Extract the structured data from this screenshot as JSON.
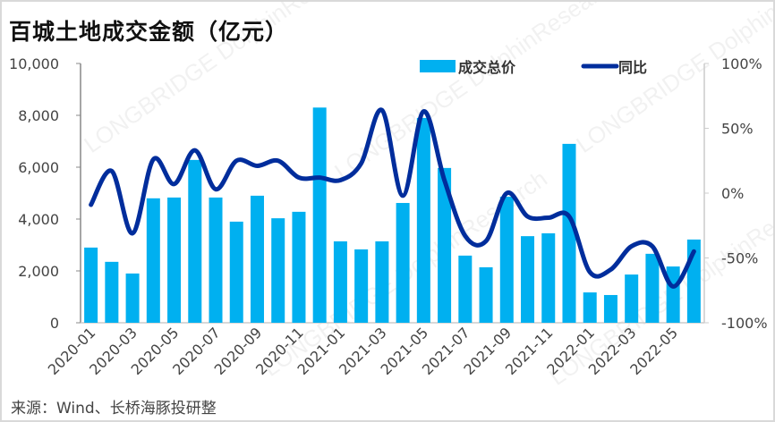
{
  "title": "百城土地成交金额（亿元）",
  "source": "来源：Wind、长桥海豚投研整",
  "watermark": "LONGBRIDGE DolphinResearch",
  "colors": {
    "bar": "#00B0F0",
    "line": "#002D9C",
    "axis": "#888888"
  },
  "chart_data": {
    "type": "bar+line",
    "title": "百城土地成交金额（亿元）",
    "categories": [
      "2020-01",
      "2020-02",
      "2020-03",
      "2020-04",
      "2020-05",
      "2020-06",
      "2020-07",
      "2020-08",
      "2020-09",
      "2020-10",
      "2020-11",
      "2020-12",
      "2021-01",
      "2021-02",
      "2021-03",
      "2021-04",
      "2021-05",
      "2021-06",
      "2021-07",
      "2021-08",
      "2021-09",
      "2021-10",
      "2021-11",
      "2021-12",
      "2022-01",
      "2022-02",
      "2022-03",
      "2022-04",
      "2022-05",
      "2022-06"
    ],
    "x_tick_labels": [
      "2020-01",
      "2020-03",
      "2020-05",
      "2020-07",
      "2020-09",
      "2020-11",
      "2021-01",
      "2021-03",
      "2021-05",
      "2021-07",
      "2021-09",
      "2021-11",
      "2022-01",
      "2022-03",
      "2022-05"
    ],
    "series": [
      {
        "name": "成交总价",
        "type": "bar",
        "axis": "left",
        "values": [
          2900,
          2350,
          1900,
          4800,
          4830,
          6280,
          4830,
          3900,
          4900,
          4030,
          4280,
          8300,
          3140,
          2830,
          3140,
          4620,
          7900,
          5970,
          2590,
          2140,
          4860,
          3340,
          3450,
          6900,
          1170,
          1070,
          1860,
          2660,
          2170,
          3210
        ]
      },
      {
        "name": "同比",
        "type": "line",
        "axis": "right",
        "values": [
          -9,
          17,
          -31,
          26,
          7,
          33,
          3,
          25,
          21,
          25,
          12,
          12,
          10,
          23,
          64,
          -2,
          63,
          10,
          -33,
          -37,
          0,
          -18,
          -19,
          -18,
          -61,
          -59,
          -41,
          -41,
          -72,
          -45
        ]
      }
    ],
    "y_left": {
      "range": [
        0,
        10000
      ],
      "ticks": [
        "0",
        "2,000",
        "4,000",
        "6,000",
        "8,000",
        "10,000"
      ]
    },
    "y_right": {
      "range": [
        -100,
        100
      ],
      "unit": "%",
      "ticks": [
        "-100%",
        "-50%",
        "0%",
        "50%",
        "100%"
      ]
    },
    "legend": {
      "placement": "top-right",
      "items": [
        "成交总价",
        "同比"
      ]
    }
  }
}
